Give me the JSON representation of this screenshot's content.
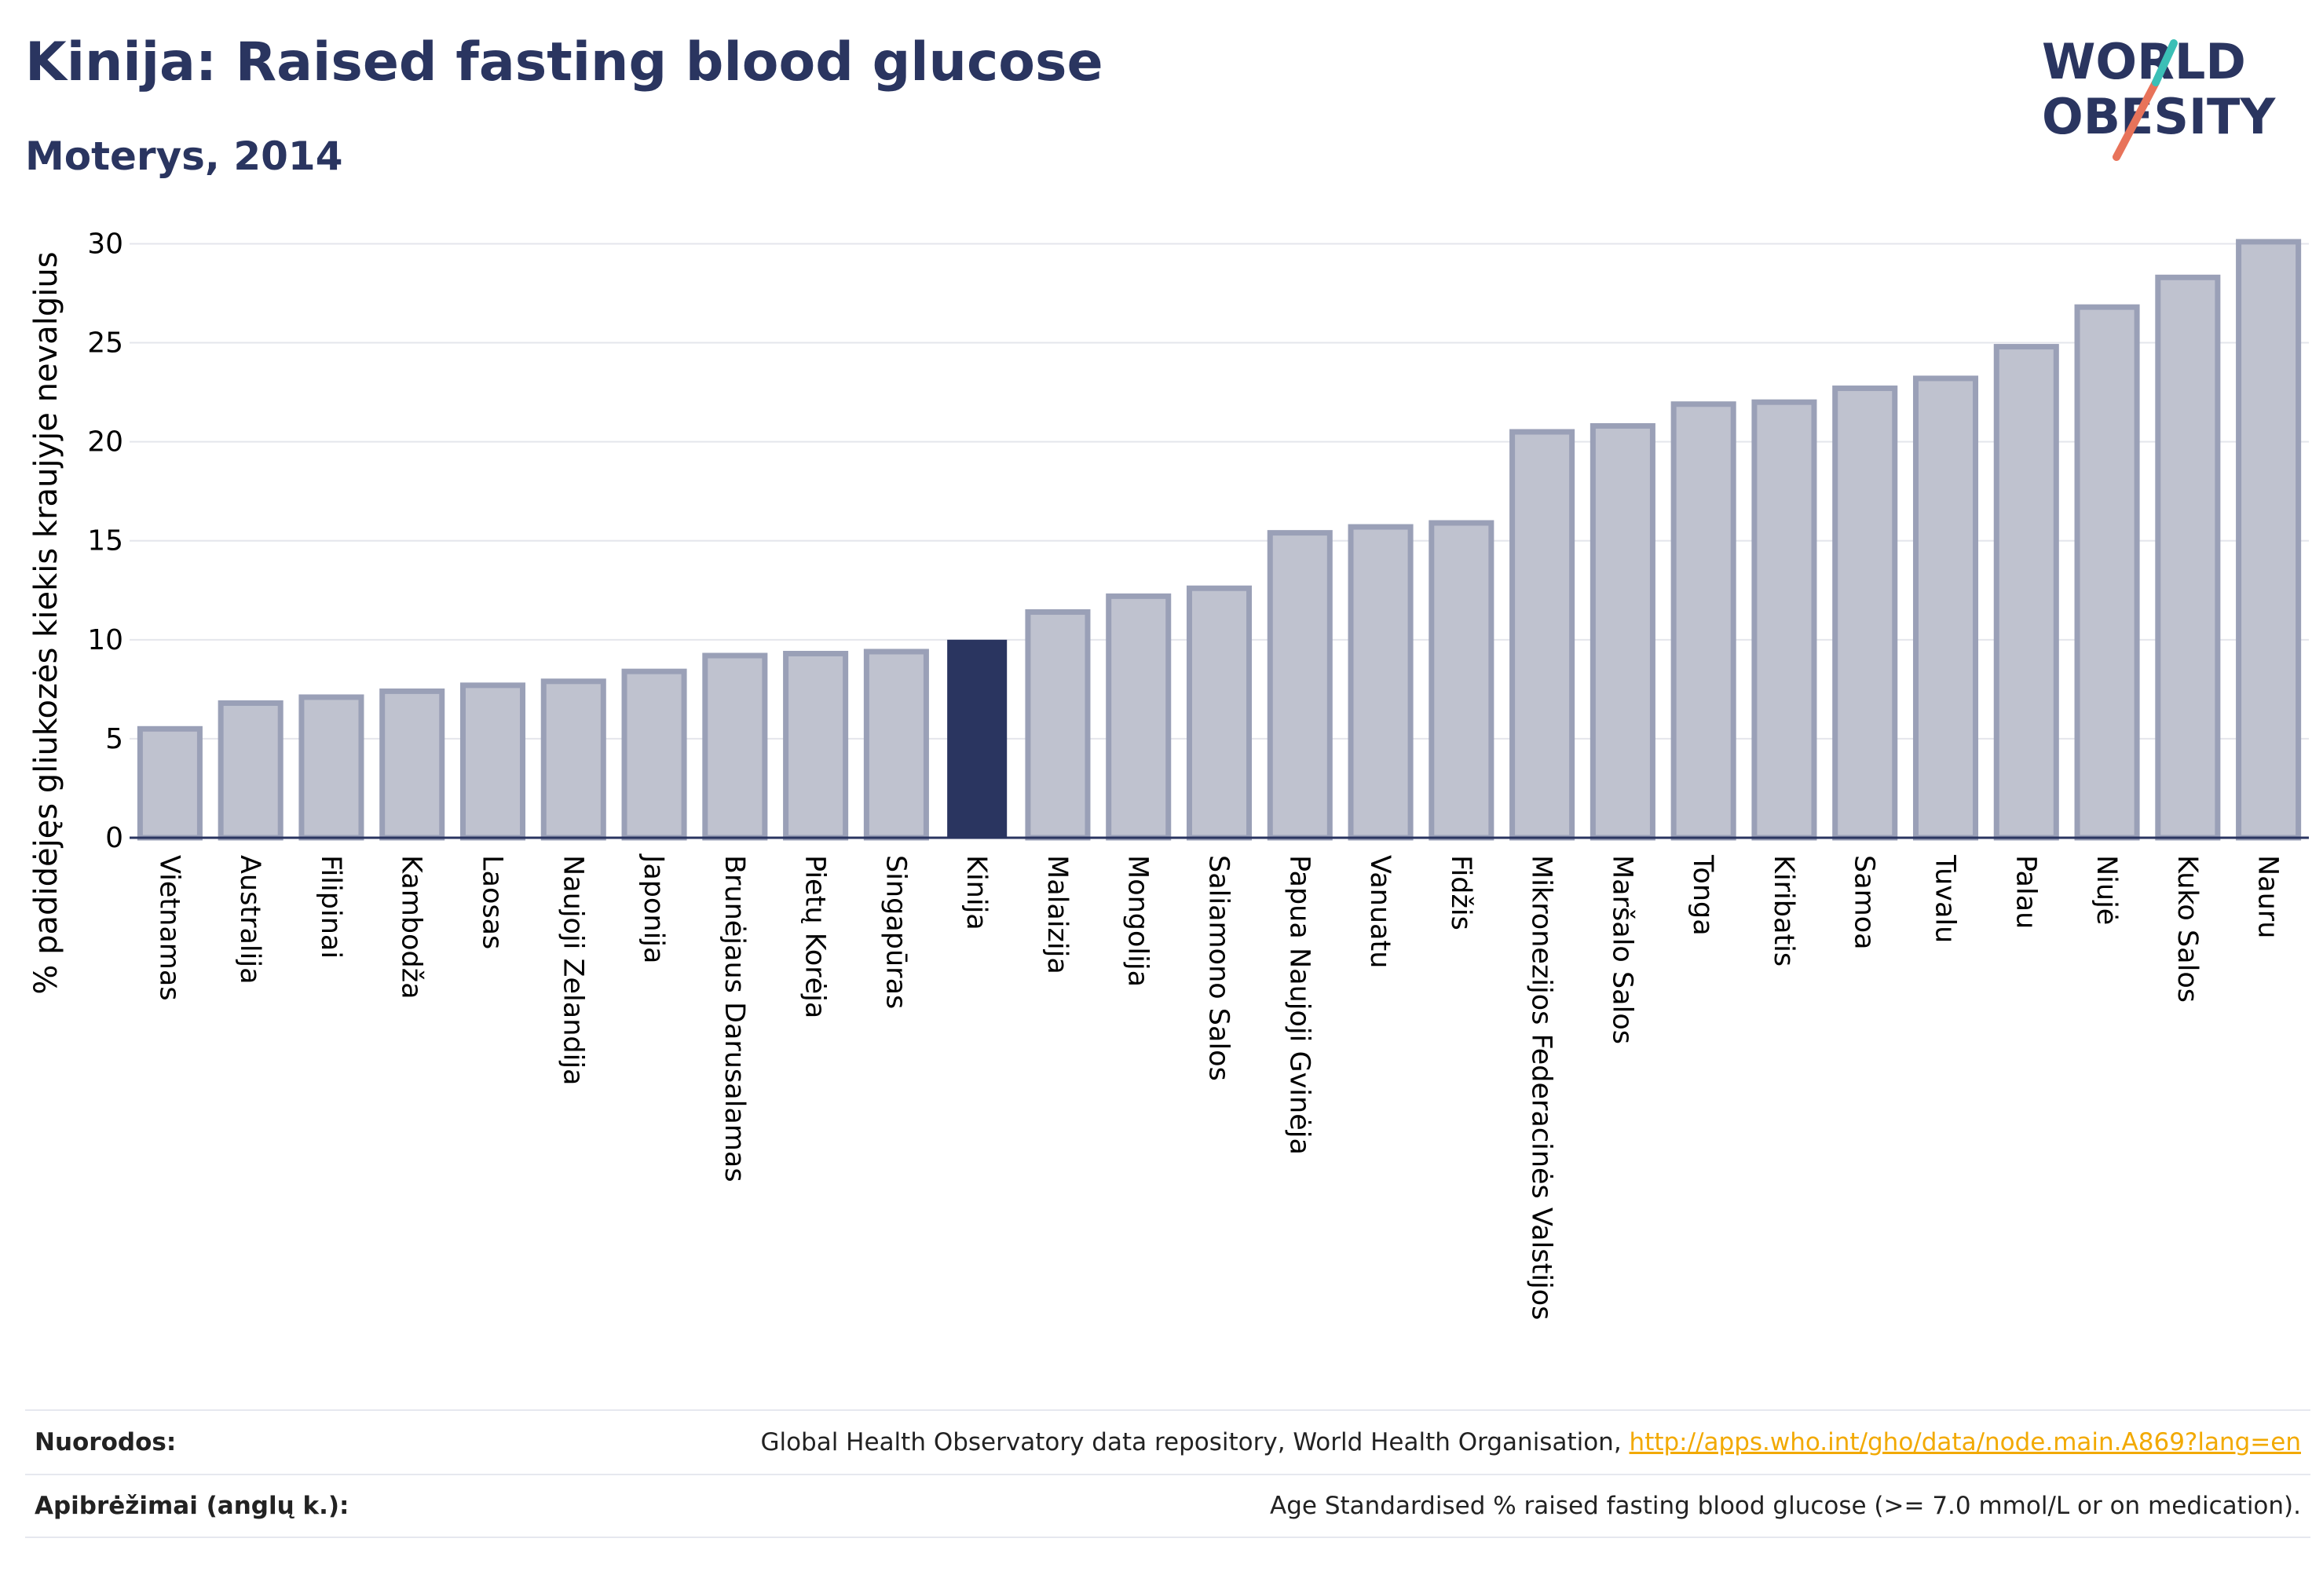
{
  "title": "Kinija: Raised fasting blood glucose",
  "subtitle": "Moterys, 2014",
  "logo": {
    "line1": "WORLD",
    "line2": "OBESITY"
  },
  "colors": {
    "highlight": "#2a3560",
    "bar_fill": "#bfc2cf",
    "bar_stroke": "#9aa0b7",
    "text": "#2a3560",
    "link": "#f2a900"
  },
  "chart_data": {
    "type": "bar",
    "ylabel": "% padidėjęs gliukozės kiekis kraujyje nevalgius",
    "xlabel": "",
    "ylim": [
      0,
      32
    ],
    "yticks": [
      0,
      5,
      10,
      15,
      20,
      25,
      30
    ],
    "grid": true,
    "highlight": "Kinija",
    "categories": [
      "Vietnamas",
      "Australija",
      "Filipinai",
      "Kambodža",
      "Laosas",
      "Naujoji Zelandija",
      "Japonija",
      "Brunėjaus Darusalamas",
      "Pietų Korėja",
      "Singapūras",
      "Kinija",
      "Malaizija",
      "Mongolija",
      "Saliamono Salos",
      "Papua Naujoji Gvinėja",
      "Vanuatu",
      "Fidžis",
      "Mikronezijos Federacinės Valstijos",
      "Maršalo Salos",
      "Tonga",
      "Kiribatis",
      "Samoa",
      "Tuvalu",
      "Palau",
      "Niujė",
      "Kuko Salos",
      "Nauru"
    ],
    "values": [
      5.5,
      6.8,
      7.1,
      7.4,
      7.7,
      7.9,
      8.4,
      9.2,
      9.3,
      9.4,
      10.0,
      11.4,
      12.2,
      12.6,
      15.4,
      15.7,
      15.9,
      20.5,
      20.8,
      21.9,
      22.0,
      22.7,
      23.2,
      24.8,
      26.8,
      28.3,
      30.1
    ]
  },
  "footer": {
    "sources_label": "Nuorodos:",
    "sources_text": "Global Health Observatory data repository, World Health Organisation, ",
    "sources_link": "http://apps.who.int/gho/data/node.main.A869?lang=en",
    "definitions_label": "Apibrėžimai (anglų k.):",
    "definitions_text": "Age Standardised % raised fasting blood glucose (>= 7.0 mmol/L or on medication)."
  }
}
